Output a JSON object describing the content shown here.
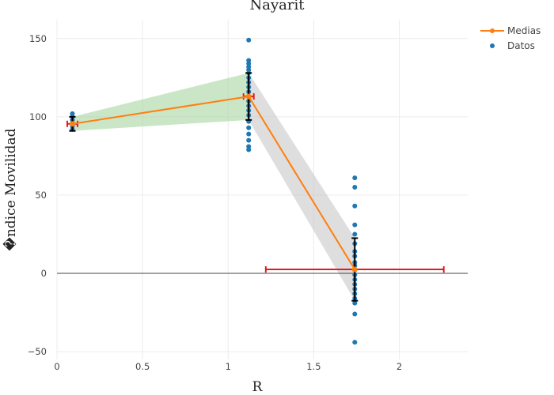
{
  "chart_data": {
    "type": "scatter",
    "title": "Nayarit",
    "xlabel": "R",
    "ylabel": "�ndice Movilidad",
    "xlim": [
      0,
      2.4
    ],
    "ylim": [
      -55,
      162
    ],
    "x_ticks": [
      0,
      0.5,
      1,
      1.5,
      2
    ],
    "x_tick_labels": [
      "0",
      "0.5",
      "1",
      "1.5",
      "2"
    ],
    "y_ticks": [
      -50,
      0,
      50,
      100,
      150
    ],
    "y_tick_labels": [
      "−50",
      "0",
      "50",
      "100",
      "150"
    ],
    "grid": true,
    "legend_position": "top-right",
    "colors": {
      "medias": "#ff7f0e",
      "datos": "#1f77b4",
      "y_error": "#000000",
      "x_error": "#e41a1c",
      "band_low": "#a8d5a2",
      "band_high": "#c8c8c8"
    },
    "series": [
      {
        "name": "Medias",
        "type": "line",
        "x": [
          0.09,
          1.12,
          1.74
        ],
        "y": [
          95.5,
          113,
          2.5
        ],
        "y_error": [
          4.5,
          15,
          20
        ],
        "x_error": [
          0.03,
          0.03,
          0.52
        ]
      },
      {
        "name": "Datos",
        "type": "scatter",
        "points": [
          {
            "x": 0.09,
            "y": 92
          },
          {
            "x": 0.09,
            "y": 94
          },
          {
            "x": 0.09,
            "y": 96
          },
          {
            "x": 0.09,
            "y": 98
          },
          {
            "x": 0.09,
            "y": 100
          },
          {
            "x": 0.09,
            "y": 102
          },
          {
            "x": 1.12,
            "y": 79
          },
          {
            "x": 1.12,
            "y": 81
          },
          {
            "x": 1.12,
            "y": 85
          },
          {
            "x": 1.12,
            "y": 89
          },
          {
            "x": 1.12,
            "y": 93
          },
          {
            "x": 1.12,
            "y": 97
          },
          {
            "x": 1.12,
            "y": 101
          },
          {
            "x": 1.12,
            "y": 104
          },
          {
            "x": 1.12,
            "y": 107
          },
          {
            "x": 1.12,
            "y": 110
          },
          {
            "x": 1.12,
            "y": 113
          },
          {
            "x": 1.12,
            "y": 116
          },
          {
            "x": 1.12,
            "y": 119
          },
          {
            "x": 1.12,
            "y": 122
          },
          {
            "x": 1.12,
            "y": 125
          },
          {
            "x": 1.12,
            "y": 128
          },
          {
            "x": 1.12,
            "y": 130
          },
          {
            "x": 1.12,
            "y": 132
          },
          {
            "x": 1.12,
            "y": 134
          },
          {
            "x": 1.12,
            "y": 136
          },
          {
            "x": 1.12,
            "y": 149
          },
          {
            "x": 1.74,
            "y": 61
          },
          {
            "x": 1.74,
            "y": 55
          },
          {
            "x": 1.74,
            "y": 43
          },
          {
            "x": 1.74,
            "y": 31
          },
          {
            "x": 1.74,
            "y": 25
          },
          {
            "x": 1.74,
            "y": 19
          },
          {
            "x": 1.74,
            "y": 14
          },
          {
            "x": 1.74,
            "y": 11
          },
          {
            "x": 1.74,
            "y": 7
          },
          {
            "x": 1.74,
            "y": 5
          },
          {
            "x": 1.74,
            "y": 2
          },
          {
            "x": 1.74,
            "y": -1
          },
          {
            "x": 1.74,
            "y": -4
          },
          {
            "x": 1.74,
            "y": -7
          },
          {
            "x": 1.74,
            "y": -10
          },
          {
            "x": 1.74,
            "y": -13
          },
          {
            "x": 1.74,
            "y": -16
          },
          {
            "x": 1.74,
            "y": -19
          },
          {
            "x": 1.74,
            "y": -26
          },
          {
            "x": 1.74,
            "y": -44
          }
        ]
      }
    ]
  }
}
